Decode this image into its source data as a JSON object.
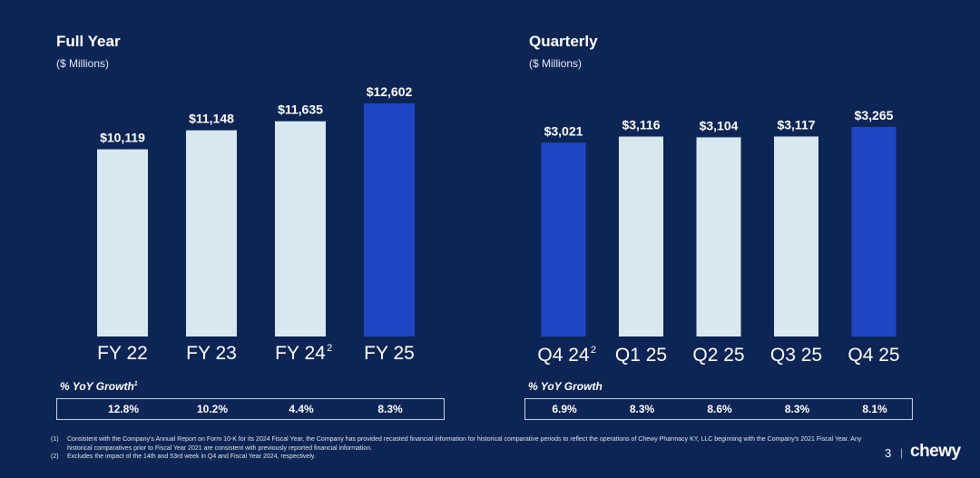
{
  "colors": {
    "background": "#0c2554",
    "bar_light": "#d8e8f0",
    "bar_highlight": "#1e46c4",
    "text": "#ffffff"
  },
  "chart_data": [
    {
      "type": "bar",
      "title": "Full Year",
      "subtitle": "($ Millions)",
      "categories": [
        "FY 22",
        "FY 23",
        "FY 24",
        "FY 25"
      ],
      "category_superscripts": [
        "",
        "",
        "2",
        ""
      ],
      "values": [
        10119,
        11148,
        11635,
        12602
      ],
      "value_labels": [
        "$10,119",
        "$11,148",
        "$11,635",
        "$12,602"
      ],
      "highlight": [
        false,
        false,
        false,
        true
      ],
      "ylim": [
        0,
        12602
      ],
      "xlabel": "",
      "ylabel": "",
      "growth_title": "% YoY Growth",
      "growth_title_sup": "1",
      "growth": [
        "12.8%",
        "10.2%",
        "4.4%",
        "8.3%"
      ]
    },
    {
      "type": "bar",
      "title": "Quarterly",
      "subtitle": "($ Millions)",
      "categories": [
        "Q4 24",
        "Q1 25",
        "Q2 25",
        "Q3 25",
        "Q4 25"
      ],
      "category_superscripts": [
        "2",
        "",
        "",
        "",
        ""
      ],
      "values": [
        3021,
        3116,
        3104,
        3117,
        3265
      ],
      "value_labels": [
        "$3,021",
        "$3,116",
        "$3,104",
        "$3,117",
        "$3,265"
      ],
      "highlight": [
        true,
        false,
        false,
        false,
        true
      ],
      "ylim": [
        0,
        3265
      ],
      "xlabel": "",
      "ylabel": "",
      "growth_title": "% YoY Growth",
      "growth_title_sup": "",
      "growth": [
        "6.9%",
        "8.3%",
        "8.6%",
        "8.3%",
        "8.1%"
      ]
    }
  ],
  "footnotes": [
    {
      "num": "(1)",
      "text": "Consistent with the Company's Annual Report on Form 10-K for its 2024 Fiscal Year, the Company has provided recasted financial information for historical comparative periods to reflect the operations of Chewy Pharmacy KY, LLC beginning with the Company's 2021 Fiscal Year. Any historical comparatives prior to Fiscal Year 2021 are consistent with previously reported financial information."
    },
    {
      "num": "(2)",
      "text": "Excludes the impact of the 14th and 53rd week in Q4 and Fiscal Year 2024, respectively."
    }
  ],
  "page_number": "3",
  "separator": "|",
  "logo_text": "chewy"
}
